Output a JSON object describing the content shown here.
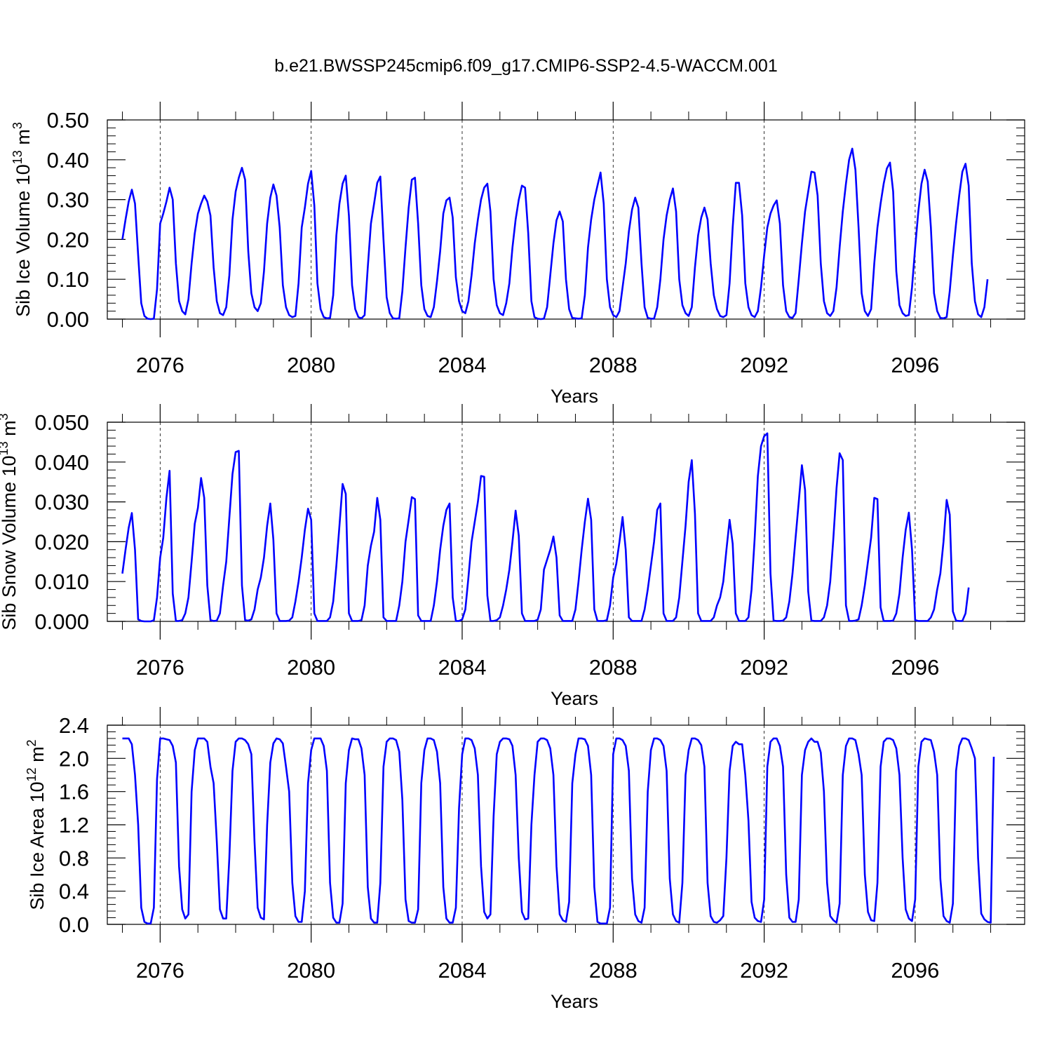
{
  "title": "b.e21.BWSSP245cmip6.f09_g17.CMIP6-SSP2-4.5-WACCM.001",
  "line_color": "#0000ff",
  "chart_data": [
    {
      "type": "line",
      "xlabel": "Years",
      "ylabel_text": "Sib Ice Volume 10",
      "ylabel_exp": "13",
      "ylabel_unit": " m",
      "ylabel_unit_exp": "3",
      "xlim": [
        2074.6,
        2098.9
      ],
      "ylim": [
        0.0,
        0.5
      ],
      "xticks": [
        2076,
        2080,
        2084,
        2088,
        2092,
        2096
      ],
      "xtick_labels": [
        "2076",
        "2080",
        "2084",
        "2088",
        "2092",
        "2096"
      ],
      "yticks": [
        0.0,
        0.1,
        0.2,
        0.3,
        0.4,
        0.5
      ],
      "ytick_labels": [
        "0.00",
        "0.10",
        "0.20",
        "0.30",
        "0.40",
        "0.50"
      ],
      "grid": "dashed vertical at major x ticks",
      "series": [
        {
          "x0": 2075.0,
          "dx": 0.0833333,
          "values": [
            0.2,
            0.25,
            0.295,
            0.325,
            0.29,
            0.16,
            0.04,
            0.008,
            0.001,
            0.0,
            0.001,
            0.075,
            0.24,
            0.265,
            0.295,
            0.33,
            0.3,
            0.14,
            0.045,
            0.02,
            0.012,
            0.05,
            0.14,
            0.215,
            0.265,
            0.29,
            0.31,
            0.295,
            0.26,
            0.13,
            0.045,
            0.015,
            0.01,
            0.03,
            0.11,
            0.25,
            0.32,
            0.355,
            0.38,
            0.35,
            0.17,
            0.065,
            0.03,
            0.02,
            0.04,
            0.12,
            0.24,
            0.305,
            0.338,
            0.31,
            0.23,
            0.085,
            0.03,
            0.01,
            0.005,
            0.008,
            0.09,
            0.23,
            0.28,
            0.34,
            0.372,
            0.285,
            0.09,
            0.025,
            0.005,
            0.002,
            0.003,
            0.06,
            0.21,
            0.29,
            0.34,
            0.36,
            0.26,
            0.085,
            0.025,
            0.005,
            0.002,
            0.01,
            0.13,
            0.24,
            0.29,
            0.342,
            0.358,
            0.2,
            0.055,
            0.015,
            0.002,
            0.001,
            0.002,
            0.07,
            0.18,
            0.28,
            0.35,
            0.355,
            0.24,
            0.085,
            0.025,
            0.008,
            0.005,
            0.03,
            0.095,
            0.17,
            0.265,
            0.298,
            0.305,
            0.255,
            0.105,
            0.045,
            0.02,
            0.015,
            0.045,
            0.11,
            0.19,
            0.25,
            0.3,
            0.33,
            0.34,
            0.27,
            0.1,
            0.035,
            0.015,
            0.01,
            0.04,
            0.09,
            0.18,
            0.25,
            0.3,
            0.335,
            0.33,
            0.215,
            0.045,
            0.005,
            0.001,
            0.0,
            0.001,
            0.03,
            0.11,
            0.19,
            0.248,
            0.27,
            0.245,
            0.1,
            0.025,
            0.003,
            0.002,
            0.001,
            0.002,
            0.06,
            0.18,
            0.25,
            0.3,
            0.335,
            0.368,
            0.29,
            0.1,
            0.03,
            0.01,
            0.005,
            0.02,
            0.08,
            0.14,
            0.22,
            0.275,
            0.305,
            0.28,
            0.14,
            0.03,
            0.003,
            0.001,
            0.001,
            0.03,
            0.1,
            0.2,
            0.26,
            0.3,
            0.328,
            0.27,
            0.1,
            0.035,
            0.015,
            0.008,
            0.03,
            0.13,
            0.21,
            0.255,
            0.28,
            0.25,
            0.14,
            0.06,
            0.025,
            0.008,
            0.005,
            0.01,
            0.09,
            0.23,
            0.342,
            0.342,
            0.26,
            0.09,
            0.03,
            0.01,
            0.005,
            0.02,
            0.08,
            0.16,
            0.23,
            0.265,
            0.285,
            0.298,
            0.24,
            0.085,
            0.02,
            0.005,
            0.003,
            0.015,
            0.1,
            0.19,
            0.27,
            0.32,
            0.37,
            0.368,
            0.31,
            0.14,
            0.045,
            0.015,
            0.008,
            0.02,
            0.08,
            0.18,
            0.27,
            0.34,
            0.4,
            0.428,
            0.375,
            0.23,
            0.065,
            0.02,
            0.008,
            0.025,
            0.14,
            0.23,
            0.29,
            0.34,
            0.378,
            0.393,
            0.32,
            0.12,
            0.035,
            0.015,
            0.008,
            0.01,
            0.08,
            0.18,
            0.27,
            0.34,
            0.375,
            0.345,
            0.23,
            0.065,
            0.02,
            0.003,
            0.002,
            0.005,
            0.07,
            0.16,
            0.24,
            0.31,
            0.37,
            0.39,
            0.335,
            0.14,
            0.045,
            0.012,
            0.005,
            0.03,
            0.1
          ]
        }
      ]
    },
    {
      "type": "line",
      "xlabel": "Years",
      "ylabel_text": "Sib Snow Volume 10",
      "ylabel_exp": "13",
      "ylabel_unit": " m",
      "ylabel_unit_exp": "3",
      "xlim": [
        2074.6,
        2098.9
      ],
      "ylim": [
        0.0,
        0.05
      ],
      "xticks": [
        2076,
        2080,
        2084,
        2088,
        2092,
        2096
      ],
      "xtick_labels": [
        "2076",
        "2080",
        "2084",
        "2088",
        "2092",
        "2096"
      ],
      "yticks": [
        0.0,
        0.01,
        0.02,
        0.03,
        0.04,
        0.05
      ],
      "ytick_labels": [
        "0.000",
        "0.010",
        "0.020",
        "0.030",
        "0.040",
        "0.050"
      ],
      "grid": "dashed vertical at major x ticks",
      "series": [
        {
          "x0": 2075.0,
          "dx": 0.0833333,
          "values": [
            0.012,
            0.018,
            0.0235,
            0.0272,
            0.018,
            0.0005,
            0.0001,
            0.0,
            0.0,
            0.0,
            0.0003,
            0.006,
            0.016,
            0.021,
            0.031,
            0.0378,
            0.007,
            0.0001,
            0.0001,
            0.0003,
            0.002,
            0.006,
            0.015,
            0.0245,
            0.0285,
            0.036,
            0.031,
            0.009,
            0.0003,
            0.0001,
            0.0002,
            0.002,
            0.009,
            0.015,
            0.026,
            0.037,
            0.0425,
            0.0428,
            0.009,
            0.0003,
            0.0002,
            0.0005,
            0.003,
            0.008,
            0.011,
            0.016,
            0.024,
            0.0296,
            0.0205,
            0.002,
            0.0001,
            0.0001,
            0.0001,
            0.0002,
            0.001,
            0.005,
            0.01,
            0.016,
            0.023,
            0.0283,
            0.0255,
            0.002,
            0.0001,
            0.0001,
            0.0001,
            0.0001,
            0.001,
            0.005,
            0.014,
            0.024,
            0.0345,
            0.032,
            0.002,
            0.0001,
            0.0001,
            0.0001,
            0.0003,
            0.004,
            0.014,
            0.019,
            0.0225,
            0.031,
            0.0255,
            0.001,
            0.0001,
            0.0001,
            0.0001,
            0.0001,
            0.004,
            0.01,
            0.02,
            0.0255,
            0.0312,
            0.0307,
            0.0015,
            0.0001,
            0.0001,
            0.0001,
            0.0001,
            0.004,
            0.01,
            0.018,
            0.024,
            0.028,
            0.0296,
            0.006,
            0.0001,
            0.0001,
            0.0005,
            0.003,
            0.011,
            0.02,
            0.025,
            0.03,
            0.0365,
            0.0363,
            0.0065,
            0.0001,
            0.0001,
            0.0003,
            0.001,
            0.004,
            0.008,
            0.013,
            0.02,
            0.0278,
            0.0215,
            0.002,
            0.0001,
            0.0001,
            0.0001,
            0.0001,
            0.0004,
            0.003,
            0.013,
            0.0155,
            0.018,
            0.0213,
            0.016,
            0.0015,
            0.0001,
            0.0001,
            0.0001,
            0.0001,
            0.003,
            0.01,
            0.018,
            0.025,
            0.0308,
            0.0255,
            0.003,
            0.0001,
            0.0001,
            0.0001,
            0.0003,
            0.004,
            0.011,
            0.0145,
            0.02,
            0.0262,
            0.018,
            0.001,
            0.0001,
            0.0001,
            0.0001,
            0.0001,
            0.003,
            0.008,
            0.014,
            0.02,
            0.028,
            0.0296,
            0.002,
            0.0001,
            0.0001,
            0.0001,
            0.001,
            0.006,
            0.015,
            0.024,
            0.035,
            0.0405,
            0.027,
            0.002,
            0.0001,
            0.0001,
            0.0001,
            0.0001,
            0.001,
            0.004,
            0.006,
            0.01,
            0.018,
            0.0255,
            0.0195,
            0.002,
            0.0001,
            0.0001,
            0.0001,
            0.001,
            0.008,
            0.021,
            0.0365,
            0.044,
            0.0465,
            0.0472,
            0.012,
            0.0002,
            0.0001,
            0.0001,
            0.0002,
            0.001,
            0.005,
            0.012,
            0.021,
            0.03,
            0.0392,
            0.033,
            0.0075,
            0.0002,
            0.0001,
            0.0001,
            0.0001,
            0.001,
            0.004,
            0.01,
            0.021,
            0.0335,
            0.0422,
            0.0405,
            0.004,
            0.0001,
            0.0001,
            0.0002,
            0.0005,
            0.004,
            0.009,
            0.015,
            0.021,
            0.031,
            0.0307,
            0.0035,
            0.0001,
            0.0001,
            0.0001,
            0.0002,
            0.002,
            0.007,
            0.016,
            0.023,
            0.0273,
            0.018,
            0.0003,
            0.0001,
            0.0001,
            0.0001,
            0.0001,
            0.001,
            0.003,
            0.008,
            0.012,
            0.02,
            0.0305,
            0.0268,
            0.0025,
            0.0002,
            0.0001,
            0.0001,
            0.002,
            0.0085
          ]
        }
      ]
    },
    {
      "type": "line",
      "xlabel": "Years",
      "ylabel_text": "Sib Ice Area 10",
      "ylabel_exp": "12",
      "ylabel_unit": " m",
      "ylabel_unit_exp": "2",
      "xlim": [
        2074.6,
        2098.9
      ],
      "ylim": [
        0.0,
        2.4
      ],
      "xticks": [
        2076,
        2080,
        2084,
        2088,
        2092,
        2096
      ],
      "xtick_labels": [
        "2076",
        "2080",
        "2084",
        "2088",
        "2092",
        "2096"
      ],
      "yticks": [
        0.0,
        0.4,
        0.8,
        1.2,
        1.6,
        2.0,
        2.4
      ],
      "ytick_labels": [
        "0.0",
        "0.4",
        "0.8",
        "1.2",
        "1.6",
        "2.0",
        "2.4"
      ],
      "grid": "dashed vertical at major x ticks",
      "series": [
        {
          "x0": 2075.0,
          "dx": 0.0833333,
          "values": [
            2.24,
            2.24,
            2.24,
            2.17,
            1.8,
            1.2,
            0.2,
            0.03,
            0.01,
            0.01,
            0.2,
            1.75,
            2.24,
            2.24,
            2.23,
            2.22,
            2.15,
            1.95,
            0.7,
            0.18,
            0.07,
            0.12,
            1.6,
            2.1,
            2.24,
            2.24,
            2.24,
            2.2,
            1.9,
            1.7,
            1.0,
            0.18,
            0.07,
            0.07,
            0.8,
            1.85,
            2.2,
            2.24,
            2.24,
            2.22,
            2.17,
            2.05,
            1.0,
            0.2,
            0.08,
            0.06,
            1.2,
            1.95,
            2.18,
            2.24,
            2.23,
            2.18,
            1.9,
            1.6,
            0.5,
            0.1,
            0.03,
            0.03,
            0.4,
            1.7,
            2.1,
            2.24,
            2.24,
            2.24,
            2.15,
            1.85,
            0.5,
            0.08,
            0.02,
            0.02,
            0.25,
            1.7,
            2.1,
            2.24,
            2.23,
            2.23,
            2.12,
            1.8,
            0.45,
            0.07,
            0.02,
            0.02,
            0.5,
            1.9,
            2.2,
            2.24,
            2.24,
            2.22,
            2.08,
            1.5,
            0.3,
            0.04,
            0.02,
            0.02,
            0.18,
            1.7,
            2.1,
            2.24,
            2.24,
            2.22,
            2.08,
            1.7,
            0.45,
            0.07,
            0.02,
            0.02,
            0.2,
            1.4,
            2.05,
            2.24,
            2.24,
            2.22,
            2.12,
            1.8,
            0.7,
            0.15,
            0.07,
            0.12,
            1.3,
            2.05,
            2.2,
            2.24,
            2.24,
            2.23,
            2.15,
            1.8,
            0.8,
            0.15,
            0.06,
            0.07,
            1.2,
            1.8,
            2.2,
            2.24,
            2.24,
            2.22,
            2.12,
            1.8,
            0.7,
            0.12,
            0.05,
            0.03,
            0.27,
            1.7,
            2.05,
            2.24,
            2.24,
            2.23,
            2.15,
            1.8,
            0.45,
            0.03,
            0.01,
            0.01,
            0.01,
            0.2,
            2.05,
            2.24,
            2.24,
            2.22,
            2.15,
            1.85,
            0.55,
            0.12,
            0.04,
            0.02,
            0.2,
            1.6,
            2.1,
            2.24,
            2.24,
            2.22,
            2.15,
            1.85,
            0.55,
            0.12,
            0.04,
            0.02,
            0.5,
            1.8,
            2.1,
            2.24,
            2.24,
            2.22,
            2.16,
            1.9,
            0.5,
            0.1,
            0.03,
            0.02,
            0.05,
            0.1,
            0.8,
            1.85,
            2.15,
            2.2,
            2.17,
            2.17,
            1.8,
            1.25,
            0.27,
            0.08,
            0.04,
            0.03,
            0.3,
            1.9,
            2.2,
            2.24,
            2.24,
            2.15,
            1.9,
            0.6,
            0.08,
            0.03,
            0.03,
            0.3,
            1.8,
            2.1,
            2.2,
            2.24,
            2.2,
            2.2,
            2.07,
            1.6,
            0.5,
            0.1,
            0.05,
            0.02,
            0.25,
            1.8,
            2.15,
            2.24,
            2.24,
            2.22,
            2.05,
            1.8,
            0.6,
            0.15,
            0.05,
            0.04,
            0.5,
            1.9,
            2.2,
            2.24,
            2.24,
            2.22,
            2.12,
            1.8,
            0.8,
            0.18,
            0.07,
            0.04,
            0.3,
            1.9,
            2.2,
            2.24,
            2.23,
            2.22,
            2.08,
            1.8,
            0.55,
            0.1,
            0.04,
            0.02,
            0.25,
            1.85,
            2.15,
            2.24,
            2.24,
            2.22,
            2.12,
            2.0,
            0.8,
            0.13,
            0.06,
            0.03,
            0.02,
            2.02
          ]
        }
      ]
    }
  ]
}
